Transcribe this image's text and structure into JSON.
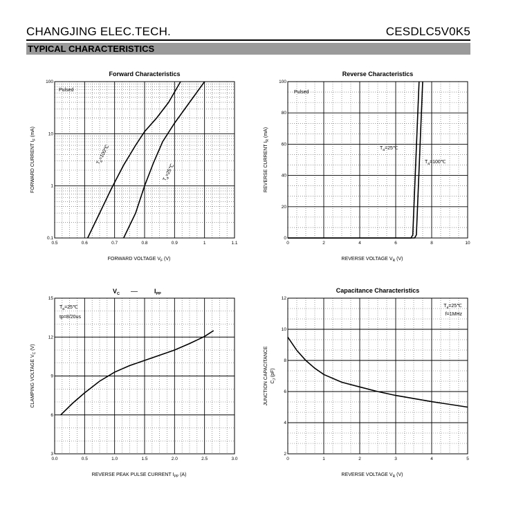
{
  "header": {
    "company": "CHANGJING ELEC.TECH.",
    "part": "CESDLC5V0K5",
    "section": "TYPICAL CHARACTERISTICS"
  },
  "chart_data": [
    {
      "id": "forward",
      "type": "line",
      "title": "Forward    Characteristics",
      "xlabel": "FORWARD VOLTAGE    V",
      "xlabel_sub": "F",
      "xlabel_unit": "(V)",
      "ylabel": "FORWARD CURRENT    I",
      "ylabel_sub": "F",
      "ylabel_unit": "(mA)",
      "xlim": [
        0.5,
        1.1
      ],
      "ylim": [
        0.1,
        100
      ],
      "yscale": "log",
      "xticks": [
        "0.5",
        "0.6",
        "0.7",
        "0.8",
        "0.9",
        "1",
        "1.1"
      ],
      "yticks": [
        "0.1",
        "1",
        "10",
        "100"
      ],
      "grid": true,
      "annotations": [
        {
          "text": "Pulsed"
        }
      ],
      "series": [
        {
          "label": "T",
          "label_sub": "a",
          "label_rest": "=100℃",
          "points": [
            [
              0.61,
              0.1
            ],
            [
              0.65,
              0.3
            ],
            [
              0.69,
              0.9
            ],
            [
              0.73,
              2.5
            ],
            [
              0.77,
              6
            ],
            [
              0.8,
              11
            ],
            [
              0.84,
              20
            ],
            [
              0.88,
              40
            ],
            [
              0.92,
              100
            ]
          ]
        },
        {
          "label": "T",
          "label_sub": "a",
          "label_rest": "=25℃",
          "points": [
            [
              0.73,
              0.1
            ],
            [
              0.77,
              0.3
            ],
            [
              0.8,
              1.0
            ],
            [
              0.83,
              2.8
            ],
            [
              0.86,
              7
            ],
            [
              0.9,
              16
            ],
            [
              0.95,
              40
            ],
            [
              1.0,
              100
            ]
          ]
        }
      ]
    },
    {
      "id": "reverse",
      "type": "line",
      "title": "Reverse    Characteristics",
      "xlabel": "REVERSE VOLTAGE    V",
      "xlabel_sub": "R",
      "xlabel_unit": "(V)",
      "ylabel": "REVERSE CURRENT    I",
      "ylabel_sub": "R",
      "ylabel_unit": "(mA)",
      "xlim": [
        0,
        10
      ],
      "ylim": [
        0,
        100
      ],
      "xticks": [
        "0",
        "2",
        "4",
        "6",
        "8",
        "10"
      ],
      "yticks": [
        "0",
        "20",
        "40",
        "60",
        "80",
        "100"
      ],
      "grid": true,
      "annotations": [
        {
          "text": "Pulsed"
        }
      ],
      "series": [
        {
          "label": "T",
          "label_sub": "a",
          "label_rest": "=25℃",
          "points": [
            [
              0,
              0
            ],
            [
              6.85,
              0
            ],
            [
              6.95,
              2
            ],
            [
              7.3,
              100
            ]
          ]
        },
        {
          "label": "T",
          "label_sub": "a",
          "label_rest": "=100℃",
          "points": [
            [
              0,
              0
            ],
            [
              7.05,
              0
            ],
            [
              7.15,
              2
            ],
            [
              7.5,
              100
            ]
          ]
        }
      ]
    },
    {
      "id": "clamping",
      "type": "line",
      "title_main": "V",
      "title_main_sub": "C",
      "title_dash": "—",
      "title_second": "I",
      "title_second_sub": "PP",
      "xlabel": "REVERSE PEAK PULSE CURRENT    I",
      "xlabel_sub": "PP",
      "xlabel_unit": "(A)",
      "ylabel": "CLAMPING VOLTAGE  V",
      "ylabel_sub": "C",
      "ylabel_unit": "(V)",
      "xlim": [
        0,
        3
      ],
      "ylim": [
        3,
        15
      ],
      "xticks": [
        "0.0",
        "0.5",
        "1.0",
        "1.5",
        "2.0",
        "2.5",
        "3.0"
      ],
      "yticks": [
        "3",
        "6",
        "9",
        "12",
        "15"
      ],
      "grid": true,
      "annotations": [
        {
          "text": "T",
          "sub": "a",
          "rest": "=25℃"
        },
        {
          "text": "tp=8/20us"
        }
      ],
      "series": [
        {
          "points": [
            [
              0.1,
              6.0
            ],
            [
              0.3,
              6.9
            ],
            [
              0.5,
              7.7
            ],
            [
              0.75,
              8.6
            ],
            [
              1.0,
              9.3
            ],
            [
              1.25,
              9.8
            ],
            [
              1.5,
              10.2
            ],
            [
              1.75,
              10.6
            ],
            [
              2.0,
              11.0
            ],
            [
              2.25,
              11.5
            ],
            [
              2.5,
              12.05
            ],
            [
              2.65,
              12.5
            ]
          ]
        }
      ]
    },
    {
      "id": "capacitance",
      "type": "line",
      "title": "Capacitance Characteristics",
      "xlabel": "REVERSE VOLTAGE    V",
      "xlabel_sub": "R",
      "xlabel_unit": "(V)",
      "ylabel": "JUNCTION CAPACITANCE",
      "ylabel2": "C",
      "ylabel2_sub": "J",
      "ylabel2_unit": "(pF)",
      "xlim": [
        0,
        5
      ],
      "ylim": [
        2,
        12
      ],
      "xticks": [
        "0",
        "1",
        "2",
        "3",
        "4",
        "5"
      ],
      "yticks": [
        "2",
        "4",
        "6",
        "8",
        "10",
        "12"
      ],
      "grid": true,
      "annotations": [
        {
          "text": "T",
          "sub": "a",
          "rest": "=25℃"
        },
        {
          "text": "f=1MHz"
        }
      ],
      "series": [
        {
          "points": [
            [
              0,
              9.5
            ],
            [
              0.25,
              8.65
            ],
            [
              0.5,
              8.0
            ],
            [
              0.75,
              7.5
            ],
            [
              1.0,
              7.1
            ],
            [
              1.5,
              6.6
            ],
            [
              2.0,
              6.3
            ],
            [
              2.5,
              6.0
            ],
            [
              3.0,
              5.75
            ],
            [
              3.5,
              5.55
            ],
            [
              4.0,
              5.35
            ],
            [
              4.5,
              5.18
            ],
            [
              5.0,
              5.0
            ]
          ]
        }
      ]
    }
  ]
}
